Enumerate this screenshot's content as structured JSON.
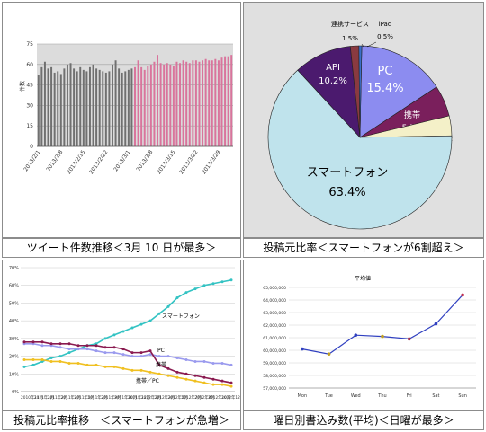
{
  "captions": [
    "ツイート件数推移＜3月 10 日が最多＞",
    "投稿元比率＜スマートフォンが6割超え＞",
    "投稿元比率推移　＜スマートフォンが急増＞",
    "曜日別書込み数(平均)＜日曜が最多＞"
  ],
  "chart_data": [
    {
      "type": "bar",
      "title": "",
      "ylabel": "件数",
      "ylim": [
        0,
        75
      ],
      "yticks": [
        0,
        15,
        30,
        45,
        60,
        75
      ],
      "grid": true,
      "xlabels": [
        "2013/2/1",
        "2013/2/8",
        "2013/2/15",
        "2013/2/22",
        "2013/3/1",
        "2013/3/8",
        "2013/3/15",
        "2013/3/22",
        "2013/3/29"
      ],
      "xlabel_index": [
        0,
        7,
        14,
        21,
        28,
        35,
        42,
        49,
        56
      ],
      "series": [
        {
          "color": "#707070",
          "values": [
            52,
            58,
            62,
            57,
            58,
            54,
            55,
            53,
            57,
            60,
            61,
            57,
            55,
            58,
            56,
            55,
            58,
            60,
            57,
            56,
            55,
            54,
            55,
            60,
            63,
            57,
            54,
            55,
            56,
            57
          ]
        },
        {
          "color": "#d9749c",
          "values": [
            58,
            63,
            58,
            56,
            59,
            60,
            62,
            67,
            61,
            60,
            61,
            60,
            59,
            62,
            61,
            63,
            62,
            61,
            63,
            63,
            62,
            63,
            64,
            63,
            63,
            64,
            63,
            65,
            66,
            66,
            67
          ]
        }
      ]
    },
    {
      "type": "pie",
      "title": "",
      "slices": [
        {
          "label": "PC",
          "value": 15.4,
          "display": "15.4%",
          "color": "#8c8cf0"
        },
        {
          "label": "携帯",
          "value": 5.5,
          "display": "5.5%",
          "color": "#7a1f5c"
        },
        {
          "label": "携帯／PC",
          "value": 3.5,
          "display": "3.5%",
          "color": "#f4f0c8"
        },
        {
          "label": "スマートフォン",
          "value": 63.4,
          "display": "63.4%",
          "color": "#bfe3ec"
        },
        {
          "label": "API",
          "value": 10.2,
          "display": "10.2%",
          "color": "#4b1a6e"
        },
        {
          "label": "連携サービス",
          "value": 1.5,
          "display": "1.5%",
          "color": "#8a3a40"
        },
        {
          "label": "iPad",
          "value": 0.5,
          "display": "0.5%",
          "color": "#3a6fc8"
        }
      ]
    },
    {
      "type": "line",
      "title": "",
      "ylim": [
        0,
        70
      ],
      "yticks": [
        "0%",
        "10%",
        "20%",
        "30%",
        "40%",
        "50%",
        "60%",
        "70%"
      ],
      "xlabels": [
        "2010年11月",
        "2011年1月",
        "2011年2月",
        "2011年4月",
        "2011年5月",
        "2011年7月",
        "2011年9月",
        "2011年10月",
        "2011年12月",
        "2012年2月",
        "2012年3月",
        "2012年5月",
        "2012年7月",
        "2012年8月",
        "2012年10月",
        "2012年12月"
      ],
      "series": [
        {
          "name": "スマートフォン",
          "color": "#33c3c3",
          "values": [
            14,
            15,
            17,
            19,
            20,
            22,
            24,
            26,
            27,
            30,
            32,
            34,
            36,
            38,
            40,
            44,
            48,
            53,
            56,
            58,
            60,
            61,
            62,
            63
          ]
        },
        {
          "name": "PC",
          "color": "#9a9aee",
          "values": [
            27,
            27,
            26,
            26,
            25,
            24,
            24,
            24,
            23,
            22,
            22,
            21,
            20,
            20,
            21,
            20,
            20,
            19,
            18,
            17,
            17,
            16,
            16,
            15
          ]
        },
        {
          "name": "携帯",
          "color": "#8a1a50",
          "values": [
            28,
            28,
            28,
            27,
            27,
            27,
            26,
            26,
            26,
            25,
            25,
            24,
            22,
            22,
            23,
            15,
            13,
            11,
            10,
            9,
            8,
            7,
            6,
            5
          ]
        },
        {
          "name": "携帯／PC",
          "color": "#f0c020",
          "values": [
            18,
            18,
            18,
            17,
            17,
            16,
            16,
            15,
            15,
            14,
            14,
            13,
            12,
            12,
            11,
            10,
            9,
            8,
            7,
            6,
            5,
            4,
            4,
            3
          ]
        }
      ]
    },
    {
      "type": "line",
      "title": "平均値",
      "ylim": [
        57000000,
        65000000
      ],
      "yticks": [
        "57,000,000",
        "58,000,000",
        "59,000,000",
        "60,000,000",
        "61,000,000",
        "62,000,000",
        "63,000,000",
        "64,000,000",
        "65,000,000"
      ],
      "categories": [
        "Mon",
        "Tue",
        "Wed",
        "Thu",
        "Fri",
        "Sat",
        "Sun"
      ],
      "values": [
        60100000,
        59700000,
        61200000,
        61100000,
        60900000,
        62100000,
        64400000
      ],
      "point_colors": [
        "#3040c0",
        "#c0a020",
        "#3040c0",
        "#c0a020",
        "#a03050",
        "#3040c0",
        "#c03050"
      ],
      "line_color": "#3040c0"
    }
  ]
}
